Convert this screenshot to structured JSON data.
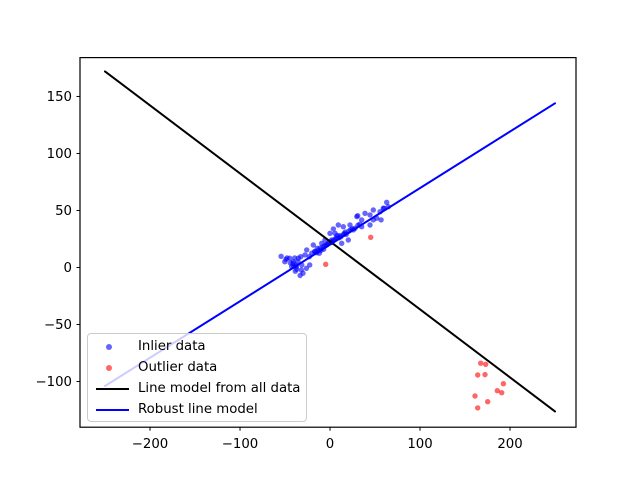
{
  "window": {
    "background": "#ffffff"
  },
  "chart_data": {
    "type": "scatter",
    "title": "",
    "xlabel": "",
    "ylabel": "",
    "xlim": [
      -277.8,
      273.3
    ],
    "ylim": [
      -140.1,
      184.1
    ],
    "grid": false,
    "xticks": {
      "values": [
        -200,
        -100,
        0,
        100,
        200
      ],
      "labels": [
        "−200",
        "−100",
        "0",
        "100",
        "200"
      ]
    },
    "yticks": {
      "values": [
        -100,
        -50,
        0,
        50,
        100,
        150
      ],
      "labels": [
        "−100",
        "−50",
        "0",
        "50",
        "100",
        "150"
      ]
    },
    "legend_position": "lower-left",
    "series": [
      {
        "name": "Inlier data",
        "kind": "scatter",
        "color": "#0000ff",
        "alpha": 0.6,
        "points": [
          [
            -54.4,
            9.8
          ],
          [
            -50.3,
            5.1
          ],
          [
            -48.9,
            7.2
          ],
          [
            -47.8,
            8.3
          ],
          [
            -44.8,
            8.1
          ],
          [
            -44.1,
            3.9
          ],
          [
            -42.6,
            0.7
          ],
          [
            -41.1,
            3.7
          ],
          [
            -40.8,
            5.1
          ],
          [
            -40.3,
            1.1
          ],
          [
            -39.2,
            8.3
          ],
          [
            -38.6,
            -3.3
          ],
          [
            -37.8,
            2.2
          ],
          [
            -37.4,
            0.7
          ],
          [
            -37,
            -1.6
          ],
          [
            -35.6,
            5.1
          ],
          [
            -35.2,
            8.1
          ],
          [
            -33.3,
            -7
          ],
          [
            -32.6,
            9.5
          ],
          [
            -31.9,
            -2.2
          ],
          [
            -31.4,
            2.2
          ],
          [
            -30,
            -5
          ],
          [
            -27.8,
            11
          ],
          [
            -26.3,
            -0.7
          ],
          [
            -25.9,
            15.4
          ],
          [
            -23,
            9.5
          ],
          [
            -22.6,
            2.2
          ],
          [
            -20.3,
            12.5
          ],
          [
            -18.6,
            19.7
          ],
          [
            -17,
            14
          ],
          [
            -16.7,
            13.9
          ],
          [
            -15,
            13
          ],
          [
            -14.1,
            16.8
          ],
          [
            -13,
            15
          ],
          [
            -11.9,
            12.5
          ],
          [
            -11,
            17
          ],
          [
            -10,
            15
          ],
          [
            -9.2,
            21.2
          ],
          [
            -8,
            18
          ],
          [
            -7,
            16
          ],
          [
            -6,
            19
          ],
          [
            -5.6,
            24.1
          ],
          [
            -4,
            20
          ],
          [
            -3.7,
            19.7
          ],
          [
            -2,
            21
          ],
          [
            -1,
            22
          ],
          [
            0,
            30
          ],
          [
            1,
            23
          ],
          [
            1.9,
            24.1
          ],
          [
            2,
            22
          ],
          [
            3.7,
            33.8
          ],
          [
            4,
            24
          ],
          [
            5.6,
            30
          ],
          [
            6,
            25
          ],
          [
            7,
            26
          ],
          [
            8,
            28
          ],
          [
            9.2,
            37.3
          ],
          [
            10,
            26
          ],
          [
            11,
            28
          ],
          [
            12,
            27
          ],
          [
            13,
            21.2
          ],
          [
            14.8,
            35.8
          ],
          [
            15,
            29
          ],
          [
            16,
            30
          ],
          [
            17,
            31
          ],
          [
            18,
            29
          ],
          [
            20.3,
            24.1
          ],
          [
            21,
            32
          ],
          [
            22.2,
            37.3
          ],
          [
            23,
            33
          ],
          [
            25,
            34
          ],
          [
            26,
            33
          ],
          [
            27.8,
            34.4
          ],
          [
            29.7,
            44.6
          ],
          [
            30.8,
            45.4
          ],
          [
            31,
            37
          ],
          [
            33,
            38
          ],
          [
            35.2,
            35.8
          ],
          [
            35.2,
            41.7
          ],
          [
            38.9,
            47.5
          ],
          [
            44.4,
            37.3
          ],
          [
            44.4,
            46.1
          ],
          [
            48.1,
            41.7
          ],
          [
            48.1,
            50.4
          ],
          [
            51.9,
            43.2
          ],
          [
            55.6,
            48.9
          ],
          [
            56.7,
            41.7
          ],
          [
            59.2,
            51.9
          ],
          [
            60,
            52
          ],
          [
            63,
            57.2
          ],
          [
            64.8,
            53.3
          ]
        ]
      },
      {
        "name": "Outlier data",
        "kind": "scatter",
        "color": "#ff0000",
        "alpha": 0.6,
        "points": [
          [
            167.4,
            -84
          ],
          [
            173,
            -84.9
          ],
          [
            164.1,
            -94.3
          ],
          [
            172.2,
            -94
          ],
          [
            192.6,
            -101.9
          ],
          [
            185.9,
            -108.1
          ],
          [
            190.8,
            -109.8
          ],
          [
            161.1,
            -112.7
          ],
          [
            175.2,
            -117.7
          ],
          [
            164.1,
            -123.2
          ],
          [
            -4.8,
            2.8
          ],
          [
            45.2,
            26.5
          ]
        ]
      },
      {
        "name": "Line model from all data",
        "kind": "line",
        "color": "#000000",
        "linewidth": 2,
        "points": [
          [
            -250,
            172
          ],
          [
            250,
            -126.2
          ]
        ]
      },
      {
        "name": "Robust line model",
        "kind": "line",
        "color": "#0000ff",
        "linewidth": 2,
        "points": [
          [
            -250,
            -104
          ],
          [
            250,
            144
          ]
        ]
      }
    ]
  },
  "legend": {
    "items": [
      {
        "label": "Inlier data",
        "marker": "dot",
        "color": "#0000ff",
        "alpha": 0.6
      },
      {
        "label": "Outlier data",
        "marker": "dot",
        "color": "#ff0000",
        "alpha": 0.6
      },
      {
        "label": "Line model from all data",
        "marker": "line",
        "color": "#000000"
      },
      {
        "label": "Robust line model",
        "marker": "line",
        "color": "#0000ff"
      }
    ]
  }
}
